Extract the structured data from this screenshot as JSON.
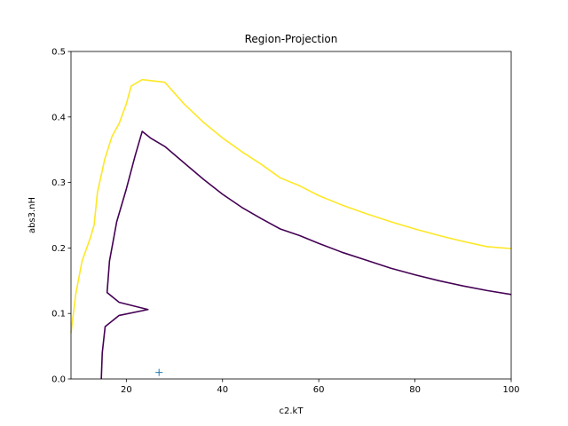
{
  "chart_data": {
    "type": "line",
    "title": "Region-Projection",
    "xlabel": "c2.kT",
    "ylabel": "abs3.nH",
    "xlim": [
      8.5,
      100
    ],
    "ylim": [
      0,
      0.5
    ],
    "xticks": [
      20,
      40,
      60,
      80,
      100
    ],
    "xtick_labels": [
      "20",
      "40",
      "60",
      "80",
      "100"
    ],
    "yticks": [
      0.0,
      0.1,
      0.2,
      0.3,
      0.4,
      0.5
    ],
    "ytick_labels": [
      "0.0",
      "0.1",
      "0.2",
      "0.3",
      "0.4",
      "0.5"
    ],
    "grid": false,
    "series": [
      {
        "color": "#440154",
        "points": [
          [
            14.8,
            0.0
          ],
          [
            15.0,
            0.04
          ],
          [
            15.6,
            0.08
          ],
          [
            18.5,
            0.097
          ],
          [
            24.5,
            0.106
          ],
          [
            18.5,
            0.117
          ],
          [
            16.0,
            0.132
          ],
          [
            16.5,
            0.18
          ],
          [
            18.0,
            0.24
          ],
          [
            20.0,
            0.29
          ],
          [
            21.8,
            0.34
          ],
          [
            23.3,
            0.378
          ],
          [
            25.0,
            0.368
          ],
          [
            28.0,
            0.355
          ],
          [
            32.0,
            0.33
          ],
          [
            36.0,
            0.305
          ],
          [
            40.0,
            0.282
          ],
          [
            44.0,
            0.262
          ],
          [
            48.0,
            0.245
          ],
          [
            52.0,
            0.229
          ],
          [
            56.0,
            0.219
          ],
          [
            60.0,
            0.207
          ],
          [
            65.0,
            0.193
          ],
          [
            70.0,
            0.181
          ],
          [
            75.0,
            0.169
          ],
          [
            80.0,
            0.159
          ],
          [
            85.0,
            0.15
          ],
          [
            90.0,
            0.142
          ],
          [
            95.0,
            0.135
          ],
          [
            100.0,
            0.129
          ]
        ]
      },
      {
        "color": "#fde725",
        "points": [
          [
            8.5,
            0.07
          ],
          [
            9.5,
            0.13
          ],
          [
            10.8,
            0.18
          ],
          [
            12.5,
            0.215
          ],
          [
            13.3,
            0.235
          ],
          [
            14.0,
            0.285
          ],
          [
            15.5,
            0.335
          ],
          [
            17.0,
            0.37
          ],
          [
            18.5,
            0.39
          ],
          [
            20.0,
            0.42
          ],
          [
            21.0,
            0.447
          ],
          [
            23.3,
            0.457
          ],
          [
            28.0,
            0.453
          ],
          [
            32.0,
            0.42
          ],
          [
            36.0,
            0.392
          ],
          [
            40.0,
            0.368
          ],
          [
            44.0,
            0.347
          ],
          [
            48.0,
            0.328
          ],
          [
            52.0,
            0.307
          ],
          [
            56.0,
            0.295
          ],
          [
            60.0,
            0.28
          ],
          [
            65.0,
            0.265
          ],
          [
            70.0,
            0.252
          ],
          [
            75.0,
            0.24
          ],
          [
            80.0,
            0.229
          ],
          [
            85.0,
            0.219
          ],
          [
            90.0,
            0.21
          ],
          [
            95.0,
            0.202
          ],
          [
            100.0,
            0.199
          ]
        ]
      }
    ],
    "marker": {
      "symbol": "+",
      "color": "#1f77b4",
      "x": 26.8,
      "y": 0.01
    }
  }
}
